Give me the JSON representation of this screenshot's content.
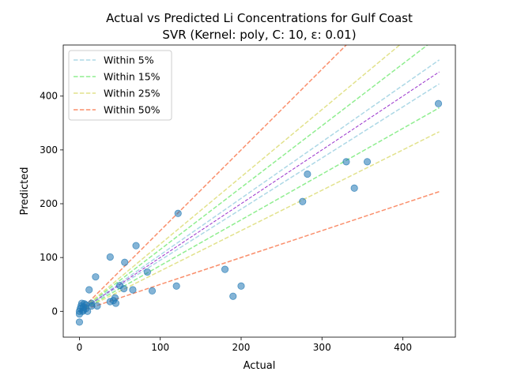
{
  "chart_data": {
    "type": "scatter",
    "title": "Actual vs Predicted Li Concentrations for Gulf Coast",
    "subtitle": "SVR (Kernel: poly, C: 10, ε: 0.01)",
    "xlabel": "Actual",
    "ylabel": "Predicted",
    "xlim": [
      -20,
      465
    ],
    "ylim": [
      -48,
      495
    ],
    "xticks": [
      0,
      100,
      200,
      300,
      400
    ],
    "yticks": [
      0,
      100,
      200,
      300,
      400
    ],
    "grid": false,
    "legend_position": "upper-left",
    "bands": [
      {
        "name": "Within 5%",
        "offset": 0.05,
        "color": "#add8e6"
      },
      {
        "name": "Within 15%",
        "offset": 0.15,
        "color": "#90ee90"
      },
      {
        "name": "Within 25%",
        "offset": 0.25,
        "color": "#e2e28c"
      },
      {
        "name": "Within 50%",
        "offset": 0.5,
        "color": "#fa8f6c"
      }
    ],
    "line_range": [
      0,
      445
    ],
    "reference_color": "#9932cc",
    "point_color": "#1f77b4",
    "points": [
      {
        "x": 0,
        "y": -20
      },
      {
        "x": 0,
        "y": -5
      },
      {
        "x": 0,
        "y": 0
      },
      {
        "x": 1,
        "y": 5
      },
      {
        "x": 2,
        "y": 10
      },
      {
        "x": 3,
        "y": 15
      },
      {
        "x": 4,
        "y": 0
      },
      {
        "x": 5,
        "y": 2
      },
      {
        "x": 5,
        "y": 8
      },
      {
        "x": 6,
        "y": 14
      },
      {
        "x": 8,
        "y": 5
      },
      {
        "x": 8,
        "y": 12
      },
      {
        "x": 10,
        "y": 0
      },
      {
        "x": 12,
        "y": 40
      },
      {
        "x": 15,
        "y": 10
      },
      {
        "x": 15,
        "y": 15
      },
      {
        "x": 20,
        "y": 64
      },
      {
        "x": 22,
        "y": 10
      },
      {
        "x": 38,
        "y": 18
      },
      {
        "x": 38,
        "y": 101
      },
      {
        "x": 42,
        "y": 20
      },
      {
        "x": 44,
        "y": 25
      },
      {
        "x": 45,
        "y": 15
      },
      {
        "x": 50,
        "y": 48
      },
      {
        "x": 55,
        "y": 42
      },
      {
        "x": 56,
        "y": 91
      },
      {
        "x": 66,
        "y": 40
      },
      {
        "x": 70,
        "y": 122
      },
      {
        "x": 84,
        "y": 73
      },
      {
        "x": 90,
        "y": 38
      },
      {
        "x": 120,
        "y": 47
      },
      {
        "x": 122,
        "y": 182
      },
      {
        "x": 180,
        "y": 78
      },
      {
        "x": 190,
        "y": 28
      },
      {
        "x": 200,
        "y": 47
      },
      {
        "x": 276,
        "y": 204
      },
      {
        "x": 282,
        "y": 255
      },
      {
        "x": 330,
        "y": 278
      },
      {
        "x": 340,
        "y": 229
      },
      {
        "x": 356,
        "y": 278
      },
      {
        "x": 444,
        "y": 386
      }
    ]
  }
}
